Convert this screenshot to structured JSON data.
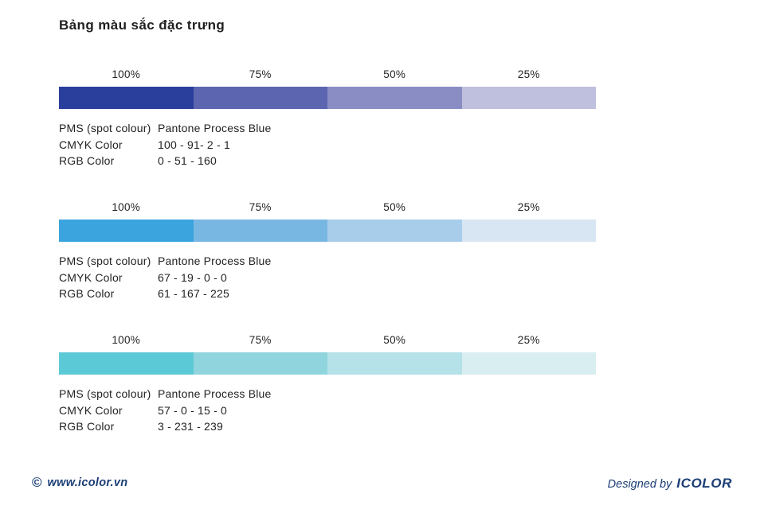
{
  "title": "Bảng màu sắc đặc trưng",
  "percent_labels": [
    "100%",
    "75%",
    "50%",
    "25%"
  ],
  "groups": [
    {
      "name": "pantone-process-blue-dark",
      "swatches": [
        "#2a3f9b",
        "#5c65af",
        "#8a8dc4",
        "#bfc0dd"
      ],
      "specs": [
        {
          "label": "PMS (spot colour)",
          "value": "Pantone Process Blue"
        },
        {
          "label": "CMYK Color",
          "value": "100 - 91- 2 - 1"
        },
        {
          "label": "RGB Color",
          "value": "0 - 51 - 160"
        }
      ]
    },
    {
      "name": "pantone-process-blue-mid",
      "swatches": [
        "#3ba4de",
        "#79b7e3",
        "#a7cdea",
        "#d8e6f3"
      ],
      "specs": [
        {
          "label": "PMS (spot colour)",
          "value": "Pantone Process Blue"
        },
        {
          "label": "CMYK Color",
          "value": "67 - 19 - 0 - 0"
        },
        {
          "label": "RGB Color",
          "value": "61 - 167 - 225"
        }
      ]
    },
    {
      "name": "pantone-process-blue-cyan",
      "swatches": [
        "#5cc9d6",
        "#90d5de",
        "#b5e1e8",
        "#d9eef1"
      ],
      "specs": [
        {
          "label": "PMS (spot colour)",
          "value": "Pantone Process Blue"
        },
        {
          "label": "CMYK Color",
          "value": "57 - 0 - 15 - 0"
        },
        {
          "label": "RGB Color",
          "value": "3 - 231 - 239"
        }
      ]
    }
  ],
  "footer": {
    "copyright_symbol": "©",
    "website": "www.icolor.vn",
    "designed_by": "Designed by",
    "brand": "ICOLOR",
    "accent_color": "#1c3e75"
  }
}
